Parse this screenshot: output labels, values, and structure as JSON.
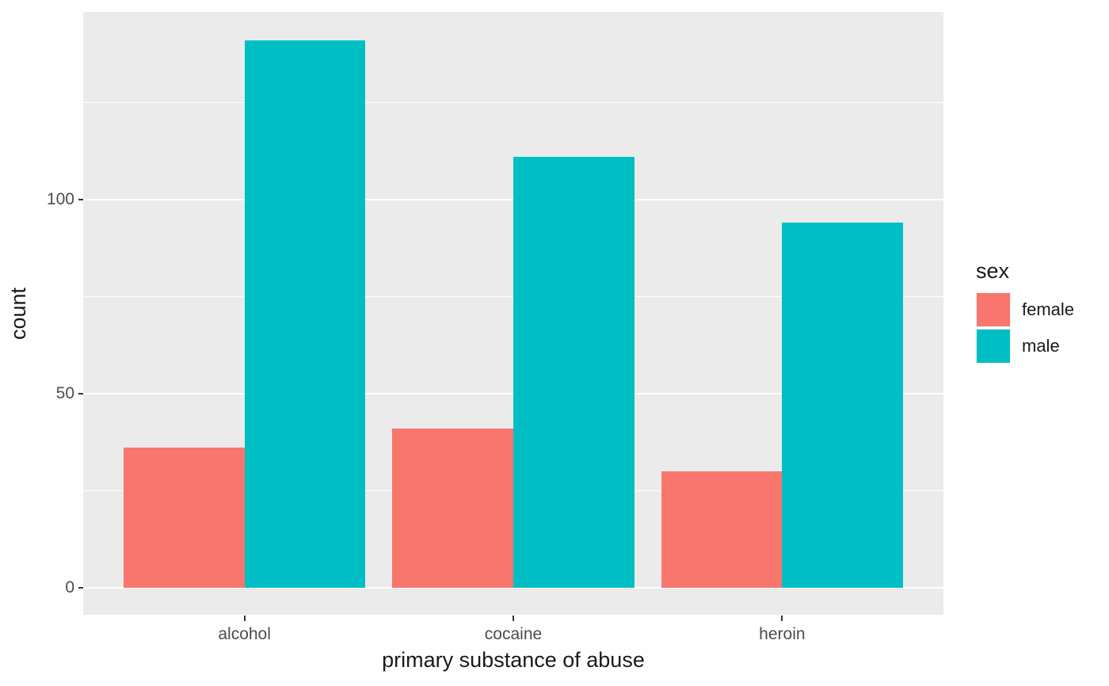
{
  "chart_data": {
    "type": "bar",
    "title": "",
    "xlabel": "primary substance of abuse",
    "ylabel": "count",
    "categories": [
      "alcohol",
      "cocaine",
      "heroin"
    ],
    "series": [
      {
        "name": "female",
        "color": "#F8766D",
        "values": [
          36,
          41,
          30
        ]
      },
      {
        "name": "male",
        "color": "#00BFC4",
        "values": [
          141,
          111,
          94
        ]
      }
    ],
    "legend_title": "sex",
    "legend_position": "right",
    "grid": "major and minor, white on grey panel",
    "ylim": [
      0,
      148
    ],
    "y_major_ticks": [
      0,
      50,
      100
    ],
    "y_minor_ticks": [
      25,
      75,
      125
    ],
    "bar_layout": "dodged"
  },
  "colors": {
    "panel_background": "#EBEBEB",
    "grid_major": "#FFFFFF",
    "grid_minor": "#FFFFFF",
    "tick_mark": "#333333",
    "tick_label": "#4D4D4D",
    "axis_title": "#1A1A1A",
    "legend_text": "#1A1A1A",
    "female": "#F8766D",
    "male": "#00BFC4"
  }
}
